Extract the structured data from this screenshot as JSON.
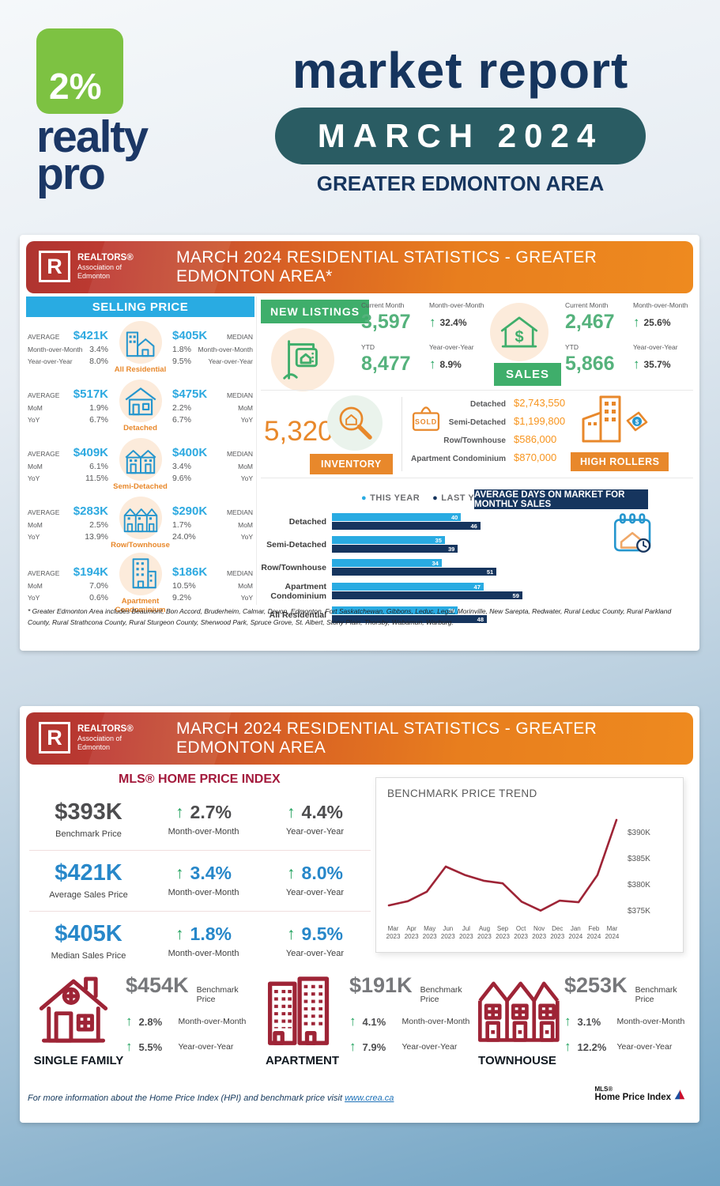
{
  "colors": {
    "accent_blue": "#29ABE2",
    "accent_green": "#3FAE6B",
    "accent_orange": "#E8882B",
    "navy": "#16355E",
    "crimson": "#A3193B",
    "dark_red": "#9E2436",
    "teal": "#2A5C63",
    "logo_green": "#7DC242"
  },
  "icons": {
    "up_arrow": "↑",
    "dot": "●"
  },
  "header": {
    "logo": {
      "percent": "2%",
      "realty": "realty",
      "pro": "pro"
    },
    "title": "market report",
    "period": "MARCH 2024",
    "region": "GREATER EDMONTON AREA"
  },
  "rae_logo": {
    "letter": "R",
    "name": "REALTORS®",
    "sub1": "Association of",
    "sub2": "Edmonton"
  },
  "panel1": {
    "banner_title": "MARCH 2024 RESIDENTIAL STATISTICS - GREATER EDMONTON AREA*",
    "selling_price": {
      "title": "SELLING PRICE",
      "rows": [
        {
          "name": "All Residential",
          "icon": "all-residential-icon",
          "avg_label": "AVERAGE",
          "avg": "$421K",
          "avg_mom_label": "Month-over-Month",
          "avg_mom": "3.4%",
          "avg_yoy_label": "Year-over-Year",
          "avg_yoy": "8.0%",
          "median_label": "MEDIAN",
          "median": "$405K",
          "median_mom_label": "Month-over-Month",
          "median_mom": "1.8%",
          "median_yoy_label": "Year-over-Year",
          "median_yoy": "9.5%"
        },
        {
          "name": "Detached",
          "icon": "detached-icon",
          "avg_label": "AVERAGE",
          "avg": "$517K",
          "avg_mom_label": "MoM",
          "avg_mom": "1.9%",
          "avg_yoy_label": "YoY",
          "avg_yoy": "6.7%",
          "median_label": "MEDIAN",
          "median": "$475K",
          "median_mom_label": "MoM",
          "median_mom": "2.2%",
          "median_yoy_label": "YoY",
          "median_yoy": "6.7%"
        },
        {
          "name": "Semi-Detached",
          "icon": "semi-detached-icon",
          "avg_label": "AVERAGE",
          "avg": "$409K",
          "avg_mom_label": "MoM",
          "avg_mom": "6.1%",
          "avg_yoy_label": "YoY",
          "avg_yoy": "11.5%",
          "median_label": "MEDIAN",
          "median": "$400K",
          "median_mom_label": "MoM",
          "median_mom": "3.4%",
          "median_yoy_label": "YoY",
          "median_yoy": "9.6%"
        },
        {
          "name": "Row/Townhouse",
          "icon": "row-townhouse-icon",
          "avg_label": "AVERAGE",
          "avg": "$283K",
          "avg_mom_label": "MoM",
          "avg_mom": "2.5%",
          "avg_yoy_label": "YoY",
          "avg_yoy": "13.9%",
          "median_label": "MEDIAN",
          "median": "$290K",
          "median_mom_label": "MoM",
          "median_mom": "1.7%",
          "median_yoy_label": "YoY",
          "median_yoy": "24.0%"
        },
        {
          "name": "Apartment Condominium",
          "icon": "apartment-condo-icon",
          "avg_label": "AVERAGE",
          "avg": "$194K",
          "avg_mom_label": "MoM",
          "avg_mom": "7.0%",
          "avg_yoy_label": "YoY",
          "avg_yoy": "0.6%",
          "median_label": "MEDIAN",
          "median": "$186K",
          "median_mom_label": "MoM",
          "median_mom": "10.5%",
          "median_yoy_label": "YoY",
          "median_yoy": "9.2%"
        }
      ]
    },
    "new_listings": {
      "badge": "NEW LISTINGS",
      "current_label": "Current Month",
      "current": "3,597",
      "mom_label": "Month-over-Month",
      "mom": "32.4%",
      "ytd_label": "YTD",
      "ytd": "8,477",
      "yoy_label": "Year-over-Year",
      "yoy": "8.9%"
    },
    "sales": {
      "badge": "SALES",
      "current_label": "Current Month",
      "current": "2,467",
      "mom_label": "Month-over-Month",
      "mom": "25.6%",
      "ytd_label": "YTD",
      "ytd": "5,866",
      "yoy_label": "Year-over-Year",
      "yoy": "35.7%"
    },
    "inventory": {
      "value": "5,320",
      "badge": "INVENTORY"
    },
    "high_rollers": {
      "badge": "HIGH ROLLERS",
      "sold_label": "SOLD",
      "items": [
        {
          "label": "Detached",
          "value": "$2,743,550"
        },
        {
          "label": "Semi-Detached",
          "value": "$1,199,800"
        },
        {
          "label": "Row/Townhouse",
          "value": "$586,000"
        },
        {
          "label": "Apartment Condominium",
          "value": "$870,000"
        }
      ]
    },
    "footnote": "* Greater Edmonton Area includes Beaumont, Bon Accord, Bruderheim, Calmar, Devon, Edmonton, Fort Saskatchewan, Gibbons, Leduc, Legal, Morinville, New Sarepta, Redwater, Rural Leduc County, Rural Parkland County, Rural Strathcona County, Rural Sturgeon County, Sherwood Park, Spruce Grove, St. Albert, Stony Plain, Thorsby, Wabamun, Warburg."
  },
  "panel2": {
    "banner_title": "MARCH 2024 RESIDENTIAL STATISTICS - GREATER EDMONTON AREA",
    "hpi_title": "MLS® HOME PRICE INDEX",
    "stats": [
      {
        "tone": "gray",
        "value": "$393K",
        "value_label": "Benchmark Price",
        "mom": "2.7%",
        "mom_label": "Month-over-Month",
        "yoy": "4.4%",
        "yoy_label": "Year-over-Year"
      },
      {
        "tone": "blue",
        "value": "$421K",
        "value_label": "Average Sales Price",
        "mom": "3.4%",
        "mom_label": "Month-over-Month",
        "yoy": "8.0%",
        "yoy_label": "Year-over-Year"
      },
      {
        "tone": "blue",
        "value": "$405K",
        "value_label": "Median Sales Price",
        "mom": "1.8%",
        "mom_label": "Month-over-Month",
        "yoy": "9.5%",
        "yoy_label": "Year-over-Year"
      }
    ],
    "properties": [
      {
        "name": "SINGLE FAMILY",
        "icon": "single-family-icon",
        "value": "$454K",
        "value_label": "Benchmark Price",
        "mom": "2.8%",
        "mom_label": "Month-over-Month",
        "yoy": "5.5%",
        "yoy_label": "Year-over-Year"
      },
      {
        "name": "APARTMENT",
        "icon": "apartment-icon",
        "value": "$191K",
        "value_label": "Benchmark Price",
        "mom": "4.1%",
        "mom_label": "Month-over-Month",
        "yoy": "7.9%",
        "yoy_label": "Year-over-Year"
      },
      {
        "name": "TOWNHOUSE",
        "icon": "townhouse-icon",
        "value": "$253K",
        "value_label": "Benchmark Price",
        "mom": "3.1%",
        "mom_label": "Month-over-Month",
        "yoy": "12.2%",
        "yoy_label": "Year-over-Year"
      }
    ],
    "footer_text": "For more information about the Home Price Index (HPI) and benchmark price visit",
    "footer_link": "www.crea.ca",
    "hpi_logo": {
      "mls": "MLS®",
      "name": "Home Price Index"
    }
  },
  "chart_data": [
    {
      "id": "days_on_market",
      "type": "bar",
      "orientation": "horizontal",
      "title": "AVERAGE DAYS ON MARKET FOR MONTHLY SALES",
      "categories": [
        "Detached",
        "Semi-Detached",
        "Row/Townhouse",
        "Apartment Condominium",
        "All Residential"
      ],
      "series": [
        {
          "name": "THIS YEAR",
          "color": "#29ABE2",
          "values": [
            40,
            35,
            34,
            47,
            39
          ]
        },
        {
          "name": "LAST YEAR",
          "color": "#16355E",
          "values": [
            46,
            39,
            51,
            59,
            48
          ]
        }
      ],
      "xlim": [
        0,
        60
      ],
      "legend_position": "top",
      "grid": false
    },
    {
      "id": "benchmark_trend",
      "type": "line",
      "title": "BENCHMARK PRICE TREND",
      "x_labels": [
        {
          "month": "Mar",
          "year": "2023"
        },
        {
          "month": "Apr",
          "year": "2023"
        },
        {
          "month": "May",
          "year": "2023"
        },
        {
          "month": "Jun",
          "year": "2023"
        },
        {
          "month": "Jul",
          "year": "2023"
        },
        {
          "month": "Aug",
          "year": "2023"
        },
        {
          "month": "Sep",
          "year": "2023"
        },
        {
          "month": "Oct",
          "year": "2023"
        },
        {
          "month": "Nov",
          "year": "2023"
        },
        {
          "month": "Dec",
          "year": "2023"
        },
        {
          "month": "Jan",
          "year": "2024"
        },
        {
          "month": "Feb",
          "year": "2024"
        },
        {
          "month": "Mar",
          "year": "2024"
        }
      ],
      "values": [
        376.2,
        377.0,
        378.8,
        383.6,
        382.0,
        380.9,
        380.4,
        376.9,
        375.2,
        377.1,
        376.8,
        382.0,
        392.5
      ],
      "unit": "thousand CAD",
      "ylim": [
        373.5,
        394
      ],
      "yticks": [
        {
          "value": 390,
          "label": "$390K"
        },
        {
          "value": 385,
          "label": "$385K"
        },
        {
          "value": 380,
          "label": "$380K"
        },
        {
          "value": 375,
          "label": "$375K"
        }
      ],
      "line_color": "#9E2436",
      "grid": false
    }
  ]
}
